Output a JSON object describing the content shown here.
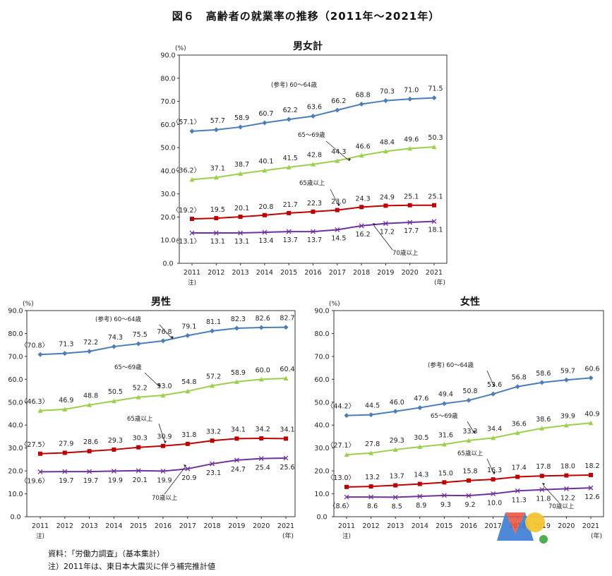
{
  "figure_title": "図６　高齢者の就業率の推移（2011年～2021年）",
  "notes": [
    "資料：「労働力調査」（基本集計）",
    "注）2011年は、東日本大震災に伴う補完推計値"
  ],
  "colors": {
    "s60_64": "#4a7ebb",
    "s65_69": "#9bd04a",
    "s65plus": "#c00000",
    "s70plus": "#7030a0"
  },
  "chart_data": [
    {
      "type": "line",
      "title": "男女計",
      "unit": "(%)",
      "x_unit": "(年)",
      "x": [
        "2011",
        "2012",
        "2013",
        "2014",
        "2015",
        "2016",
        "2017",
        "2018",
        "2019",
        "2020",
        "2021"
      ],
      "x_note": "注)",
      "ylim": [
        0,
        90
      ],
      "yticks": [
        "0.0",
        "10.0",
        "20.0",
        "30.0",
        "40.0",
        "50.0",
        "60.0",
        "70.0",
        "80.0",
        "90.0"
      ],
      "series": [
        {
          "name": "(参考) 60～64歳",
          "values": [
            57.1,
            57.7,
            58.9,
            60.7,
            62.2,
            63.6,
            66.2,
            68.8,
            70.3,
            71.0,
            71.5
          ],
          "labels": [
            "〈57.1〉",
            "57.7",
            "58.9",
            "60.7",
            "62.2",
            "63.6",
            "66.2",
            "68.8",
            "70.3",
            "71.0",
            "71.5"
          ]
        },
        {
          "name": "65～69歳",
          "values": [
            36.2,
            37.1,
            38.7,
            40.1,
            41.5,
            42.8,
            44.3,
            46.6,
            48.4,
            49.6,
            50.3
          ],
          "labels": [
            "〈36.2〉",
            "37.1",
            "38.7",
            "40.1",
            "41.5",
            "42.8",
            "44.3",
            "46.6",
            "48.4",
            "49.6",
            "50.3"
          ]
        },
        {
          "name": "65歳以上",
          "values": [
            19.2,
            19.5,
            20.1,
            20.8,
            21.7,
            22.3,
            23.0,
            24.3,
            24.9,
            25.1,
            25.1
          ],
          "labels": [
            "〈19.2〉",
            "19.5",
            "20.1",
            "20.8",
            "21.7",
            "22.3",
            "23.0",
            "24.3",
            "24.9",
            "25.1",
            "25.1"
          ]
        },
        {
          "name": "70歳以上",
          "values": [
            13.1,
            13.1,
            13.1,
            13.4,
            13.7,
            13.7,
            14.5,
            16.2,
            17.2,
            17.7,
            18.1
          ],
          "labels": [
            "〈13.1〉",
            "13.1",
            "13.1",
            "13.4",
            "13.7",
            "13.7",
            "14.5",
            "16.2",
            "17.2",
            "17.7",
            "18.1"
          ]
        }
      ]
    },
    {
      "type": "line",
      "title": "男性",
      "unit": "(%)",
      "x_unit": "(年)",
      "x": [
        "2011",
        "2012",
        "2013",
        "2014",
        "2015",
        "2016",
        "2017",
        "2018",
        "2019",
        "2020",
        "2021"
      ],
      "x_note": "注)",
      "ylim": [
        0,
        90
      ],
      "yticks": [
        "0.0",
        "10.0",
        "20.0",
        "30.0",
        "40.0",
        "50.0",
        "60.0",
        "70.0",
        "80.0",
        "90.0"
      ],
      "series": [
        {
          "name": "(参考) 60～64歳",
          "values": [
            70.8,
            71.3,
            72.2,
            74.3,
            75.5,
            76.8,
            79.1,
            81.1,
            82.3,
            82.6,
            82.7
          ],
          "labels": [
            "〈70.8〉",
            "71.3",
            "72.2",
            "74.3",
            "75.5",
            "76.8",
            "79.1",
            "81.1",
            "82.3",
            "82.6",
            "82.7"
          ]
        },
        {
          "name": "65～69歳",
          "values": [
            46.3,
            46.9,
            48.8,
            50.5,
            52.2,
            53.0,
            54.8,
            57.2,
            58.9,
            60.0,
            60.4
          ],
          "labels": [
            "〈46.3〉",
            "46.9",
            "48.8",
            "50.5",
            "52.2",
            "53.0",
            "54.8",
            "57.2",
            "58.9",
            "60.0",
            "60.4"
          ]
        },
        {
          "name": "65歳以上",
          "values": [
            27.5,
            27.9,
            28.6,
            29.3,
            30.3,
            30.9,
            31.8,
            33.2,
            34.1,
            34.2,
            34.1
          ],
          "labels": [
            "〈27.5〉",
            "27.9",
            "28.6",
            "29.3",
            "30.3",
            "30.9",
            "31.8",
            "33.2",
            "34.1",
            "34.2",
            "34.1"
          ]
        },
        {
          "name": "70歳以上",
          "values": [
            19.6,
            19.7,
            19.7,
            19.9,
            20.1,
            19.9,
            20.9,
            23.1,
            24.7,
            25.4,
            25.6
          ],
          "labels": [
            "〈19.6〉",
            "19.7",
            "19.7",
            "19.9",
            "20.1",
            "19.9",
            "20.9",
            "23.1",
            "24.7",
            "25.4",
            "25.6"
          ]
        }
      ]
    },
    {
      "type": "line",
      "title": "女性",
      "unit": "(%)",
      "x_unit": "(年)",
      "x": [
        "2011",
        "2012",
        "2013",
        "2014",
        "2015",
        "2016",
        "2017",
        "2018",
        "2019",
        "2020",
        "2021"
      ],
      "x_note": "注)",
      "ylim": [
        0,
        90
      ],
      "yticks": [
        "0.0",
        "10.0",
        "20.0",
        "30.0",
        "40.0",
        "50.0",
        "60.0",
        "70.0",
        "80.0",
        "90.0"
      ],
      "series": [
        {
          "name": "(参考) 60～64歳",
          "values": [
            44.2,
            44.5,
            46.0,
            47.6,
            49.4,
            50.8,
            53.6,
            56.8,
            58.6,
            59.7,
            60.6
          ],
          "labels": [
            "〈44.2〉",
            "44.5",
            "46.0",
            "47.6",
            "49.4",
            "50.8",
            "53.6",
            "56.8",
            "58.6",
            "59.7",
            "60.6"
          ]
        },
        {
          "name": "65～69歳",
          "values": [
            27.1,
            27.8,
            29.3,
            30.5,
            31.6,
            33.3,
            34.4,
            36.6,
            38.6,
            39.9,
            40.9
          ],
          "labels": [
            "〈27.1〉",
            "27.8",
            "29.3",
            "30.5",
            "31.6",
            "33.3",
            "34.4",
            "36.6",
            "38.6",
            "39.9",
            "40.9"
          ]
        },
        {
          "name": "65歳以上",
          "values": [
            13.0,
            13.2,
            13.7,
            14.3,
            15.0,
            15.8,
            16.3,
            17.4,
            17.8,
            18.0,
            18.2
          ],
          "labels": [
            "〈13.0〉",
            "13.2",
            "13.7",
            "14.3",
            "15.0",
            "15.8",
            "16.3",
            "17.4",
            "17.8",
            "18.0",
            "18.2"
          ]
        },
        {
          "name": "70歳以上",
          "values": [
            8.6,
            8.6,
            8.5,
            8.9,
            9.3,
            9.2,
            10.0,
            11.3,
            11.8,
            12.2,
            12.6
          ],
          "labels": [
            "〈8.6〉",
            "8.6",
            "8.5",
            "8.9",
            "9.3",
            "9.2",
            "10.0",
            "11.3",
            "11.8",
            "12.2",
            "12.6"
          ]
        }
      ]
    }
  ]
}
